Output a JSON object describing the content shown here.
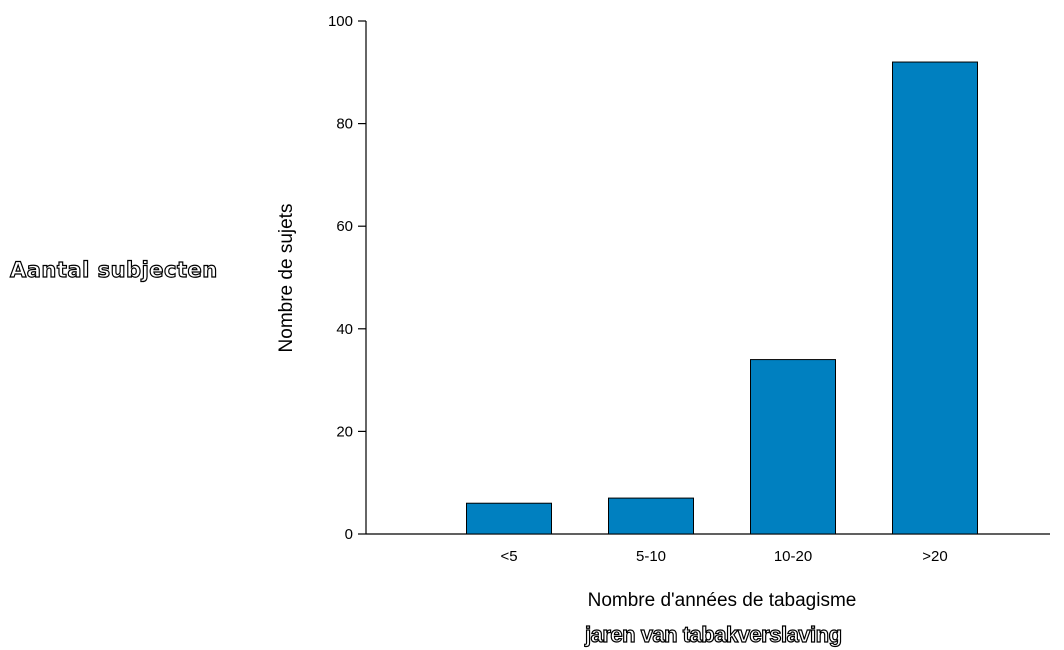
{
  "chart_data": {
    "type": "bar",
    "categories": [
      "<5",
      "5-10",
      "10-20",
      ">20"
    ],
    "values": [
      6,
      7,
      34,
      92
    ],
    "xlabel": "Nombre d'années de tabagisme",
    "ylabel": "Nombre de sujets",
    "ylim": [
      0,
      100
    ],
    "yticks": [
      "0",
      "20",
      "40",
      "60",
      "80",
      "100"
    ],
    "grid": false,
    "bar_color": "#0080c0",
    "bar_edge_color": "#000000"
  },
  "overlay": {
    "ylabel_translation": "Aantal subjecten",
    "xlabel_translation": "jaren van tabakverslaving"
  }
}
